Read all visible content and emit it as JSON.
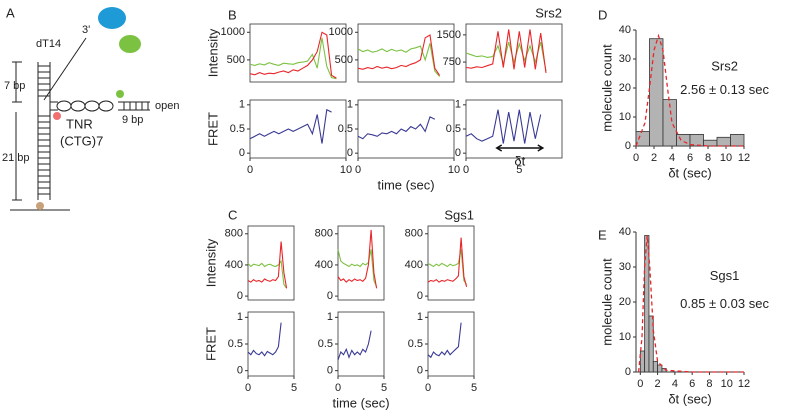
{
  "panel_labels": [
    "A",
    "B",
    "C",
    "D",
    "E"
  ],
  "diagram": {
    "three_prime": "3'",
    "tail": "dT14",
    "top_len": "7 bp",
    "bottom_len": "21 bp",
    "tnr": "TNR",
    "repeat": "(CTG)7",
    "open_len": "9 bp",
    "open": "open"
  },
  "chart_data": [
    {
      "type": "line",
      "ylabel": "Intensity",
      "ylim": [
        100,
        1150
      ],
      "yticks": [
        500,
        1000
      ],
      "xlim": [
        0,
        10
      ],
      "x": [
        0,
        0.5,
        1,
        1.5,
        2,
        2.5,
        3,
        3.5,
        4,
        4.5,
        5,
        5.5,
        6,
        6.5,
        7,
        7.5,
        8,
        8.5,
        9
      ],
      "series": [
        {
          "color": "#7cc242",
          "values": [
            420,
            400,
            430,
            410,
            450,
            420,
            400,
            440,
            430,
            420,
            450,
            460,
            480,
            600,
            350,
            900,
            380,
            180,
            160
          ]
        },
        {
          "color": "#e8262a",
          "values": [
            250,
            230,
            270,
            240,
            260,
            250,
            280,
            300,
            270,
            320,
            300,
            350,
            400,
            500,
            650,
            1000,
            950,
            220,
            170
          ]
        }
      ]
    },
    {
      "type": "line",
      "ylim": [
        100,
        1150
      ],
      "yticks": [
        500,
        1000
      ],
      "xlim": [
        0,
        10
      ],
      "x": [
        0,
        0.5,
        1,
        1.5,
        2,
        2.5,
        3,
        3.5,
        4,
        4.5,
        5,
        5.5,
        6,
        6.5,
        7,
        7.5,
        8,
        8.5
      ],
      "series": [
        {
          "color": "#7cc242",
          "values": [
            700,
            650,
            680,
            640,
            660,
            700,
            650,
            690,
            660,
            680,
            640,
            700,
            720,
            750,
            500,
            800,
            300,
            200
          ]
        },
        {
          "color": "#e8262a",
          "values": [
            350,
            330,
            360,
            340,
            380,
            350,
            370,
            340,
            360,
            400,
            380,
            420,
            450,
            500,
            900,
            950,
            350,
            220
          ]
        }
      ]
    },
    {
      "type": "line",
      "ylim": [
        200,
        1800
      ],
      "yticks": [
        750,
        1500
      ],
      "xlim": [
        0,
        9
      ],
      "annotation": "Srs2",
      "x": [
        0,
        0.5,
        1,
        1.5,
        2,
        2.5,
        3,
        3.5,
        4,
        4.5,
        5,
        5.5,
        6,
        6.5,
        7,
        7.5
      ],
      "series": [
        {
          "color": "#7cc242",
          "values": [
            1000,
            950,
            900,
            920,
            880,
            900,
            1200,
            700,
            1300,
            750,
            1250,
            800,
            1200,
            750,
            1300,
            500
          ]
        },
        {
          "color": "#e8262a",
          "values": [
            600,
            580,
            620,
            600,
            650,
            700,
            1600,
            600,
            1650,
            550,
            1600,
            600,
            1650,
            550,
            1550,
            450
          ]
        }
      ]
    },
    {
      "type": "line",
      "ylabel": "FRET",
      "ylim": [
        -0.1,
        1.1
      ],
      "yticks": [
        0,
        0.5,
        1
      ],
      "xlim": [
        0,
        10
      ],
      "xticks": [
        0,
        10
      ],
      "x": [
        0,
        0.5,
        1,
        1.5,
        2,
        2.5,
        3,
        3.5,
        4,
        4.5,
        5,
        5.5,
        6,
        6.5,
        7,
        7.5,
        8,
        8.5
      ],
      "series": [
        {
          "color": "#3a3a96",
          "values": [
            0.3,
            0.35,
            0.4,
            0.35,
            0.4,
            0.45,
            0.4,
            0.45,
            0.5,
            0.45,
            0.5,
            0.55,
            0.6,
            0.4,
            0.8,
            0.2,
            0.9,
            0.85
          ]
        }
      ]
    },
    {
      "type": "line",
      "ylim": [
        -0.1,
        1.1
      ],
      "yticks": [
        0,
        0.5,
        1
      ],
      "xlim": [
        0,
        10
      ],
      "xticks": [
        0,
        10
      ],
      "xlabel": "time (sec)",
      "x": [
        0,
        0.5,
        1,
        1.5,
        2,
        2.5,
        3,
        3.5,
        4,
        4.5,
        5,
        5.5,
        6,
        6.5,
        7,
        7.5,
        8
      ],
      "series": [
        {
          "color": "#3a3a96",
          "values": [
            0.35,
            0.3,
            0.4,
            0.38,
            0.35,
            0.42,
            0.4,
            0.45,
            0.4,
            0.5,
            0.45,
            0.55,
            0.5,
            0.6,
            0.45,
            0.75,
            0.7
          ]
        }
      ]
    },
    {
      "type": "line",
      "ylim": [
        -0.1,
        1.1
      ],
      "yticks": [
        0,
        0.5,
        1
      ],
      "xlim": [
        0,
        9
      ],
      "xticks": [
        0,
        5
      ],
      "annotation": "δt",
      "x": [
        0,
        0.5,
        1,
        1.5,
        2,
        2.5,
        3,
        3.5,
        4,
        4.5,
        5,
        5.5,
        6,
        6.5,
        7
      ],
      "series": [
        {
          "color": "#3a3a96",
          "values": [
            0.35,
            0.4,
            0.3,
            0.25,
            0.3,
            0.35,
            0.9,
            0.2,
            0.85,
            0.25,
            0.9,
            0.2,
            0.85,
            0.3,
            0.8
          ]
        }
      ]
    },
    {
      "type": "line",
      "ylabel": "Intensity",
      "ylim": [
        -50,
        900
      ],
      "yticks": [
        0,
        400,
        800
      ],
      "xlim": [
        0,
        5
      ],
      "x": [
        0,
        0.3,
        0.6,
        0.9,
        1.2,
        1.5,
        1.8,
        2.1,
        2.4,
        2.7,
        3,
        3.3,
        3.6,
        3.9,
        4.2
      ],
      "series": [
        {
          "color": "#7cc242",
          "values": [
            420,
            380,
            410,
            400,
            390,
            420,
            380,
            400,
            410,
            390,
            380,
            400,
            450,
            150,
            100
          ]
        },
        {
          "color": "#e8262a",
          "values": [
            200,
            180,
            210,
            190,
            200,
            180,
            220,
            200,
            190,
            210,
            200,
            250,
            700,
            300,
            100
          ]
        }
      ]
    },
    {
      "type": "line",
      "ylim": [
        -50,
        900
      ],
      "yticks": [
        0,
        400,
        800
      ],
      "xlim": [
        0,
        5
      ],
      "x": [
        0,
        0.3,
        0.6,
        0.9,
        1.2,
        1.5,
        1.8,
        2.1,
        2.4,
        2.7,
        3,
        3.3,
        3.6,
        3.9,
        4.2
      ],
      "series": [
        {
          "color": "#7cc242",
          "values": [
            600,
            450,
            420,
            400,
            380,
            410,
            390,
            400,
            380,
            420,
            400,
            430,
            600,
            200,
            120
          ]
        },
        {
          "color": "#e8262a",
          "values": [
            250,
            200,
            220,
            180,
            210,
            190,
            220,
            200,
            210,
            190,
            230,
            400,
            850,
            300,
            100
          ]
        }
      ]
    },
    {
      "type": "line",
      "ylim": [
        -50,
        900
      ],
      "yticks": [
        0,
        400,
        800
      ],
      "xlim": [
        0,
        5
      ],
      "annotation": "Sgs1",
      "x": [
        0,
        0.3,
        0.6,
        0.9,
        1.2,
        1.5,
        1.8,
        2.1,
        2.4,
        2.7,
        3,
        3.3,
        3.6,
        3.9,
        4.2
      ],
      "series": [
        {
          "color": "#7cc242",
          "values": [
            420,
            400,
            380,
            410,
            390,
            420,
            400,
            380,
            410,
            390,
            400,
            420,
            600,
            200,
            150
          ]
        },
        {
          "color": "#e8262a",
          "values": [
            180,
            200,
            190,
            210,
            180,
            200,
            190,
            210,
            200,
            190,
            220,
            260,
            750,
            250,
            120
          ]
        }
      ]
    },
    {
      "type": "line",
      "ylabel": "FRET",
      "ylim": [
        -0.1,
        1.1
      ],
      "yticks": [
        0,
        0.5,
        1
      ],
      "xlim": [
        0,
        5
      ],
      "xticks": [
        0,
        5
      ],
      "x": [
        0,
        0.3,
        0.6,
        0.9,
        1.2,
        1.5,
        1.8,
        2.1,
        2.4,
        2.7,
        3,
        3.3,
        3.6
      ],
      "series": [
        {
          "color": "#3a3a96",
          "values": [
            0.35,
            0.3,
            0.38,
            0.32,
            0.3,
            0.35,
            0.28,
            0.36,
            0.33,
            0.3,
            0.35,
            0.45,
            0.9
          ]
        }
      ]
    },
    {
      "type": "line",
      "ylim": [
        -0.1,
        1.1
      ],
      "yticks": [
        0,
        0.5,
        1
      ],
      "xlim": [
        0,
        5
      ],
      "xticks": [
        0,
        5
      ],
      "xlabel": "time (sec)",
      "x": [
        0,
        0.3,
        0.6,
        0.9,
        1.2,
        1.5,
        1.8,
        2.1,
        2.4,
        2.7,
        3,
        3.3,
        3.6
      ],
      "series": [
        {
          "color": "#3a3a96",
          "values": [
            0.2,
            0.35,
            0.3,
            0.4,
            0.25,
            0.38,
            0.3,
            0.35,
            0.3,
            0.4,
            0.35,
            0.5,
            0.75
          ]
        }
      ]
    },
    {
      "type": "line",
      "ylim": [
        -0.1,
        1.1
      ],
      "yticks": [
        0,
        0.5,
        1
      ],
      "xlim": [
        0,
        5
      ],
      "xticks": [
        0,
        5
      ],
      "x": [
        0,
        0.3,
        0.6,
        0.9,
        1.2,
        1.5,
        1.8,
        2.1,
        2.4,
        2.7,
        3,
        3.3,
        3.6
      ],
      "series": [
        {
          "color": "#3a3a96",
          "values": [
            0.3,
            0.25,
            0.35,
            0.3,
            0.28,
            0.35,
            0.3,
            0.38,
            0.3,
            0.35,
            0.4,
            0.45,
            0.9
          ]
        }
      ]
    },
    {
      "type": "histogram",
      "ylabel": "molecule count",
      "xlabel": "δt (sec)",
      "label": "Srs2",
      "stat": "2.56 ± 0.13 sec",
      "color": "#b3b3b3",
      "ylim": [
        0,
        40
      ],
      "yticks": [
        0,
        10,
        20,
        30,
        40
      ],
      "xlim": [
        0,
        12
      ],
      "xticks": [
        0,
        2,
        4,
        6,
        8,
        10,
        12
      ],
      "bins": [
        0,
        1.5,
        3,
        4.5,
        6,
        7.5,
        9,
        10.5,
        12
      ],
      "values": [
        5,
        37,
        16,
        4,
        4,
        2,
        3,
        4
      ],
      "fit_color": "#e8262a",
      "fit_x": [
        0,
        1,
        1.5,
        2,
        2.5,
        3,
        3.5,
        4,
        5,
        6,
        8,
        12
      ],
      "fit_values": [
        0,
        8,
        20,
        33,
        38,
        33,
        20,
        8,
        2,
        0.5,
        0,
        0
      ]
    },
    {
      "type": "histogram",
      "ylabel": "molecule count",
      "xlabel": "δt (sec)",
      "label": "Sgs1",
      "stat": "0.85 ± 0.03 sec",
      "color": "#b3b3b3",
      "ylim": [
        0,
        40
      ],
      "yticks": [
        0,
        10,
        20,
        30,
        40
      ],
      "xlim": [
        -0.5,
        12
      ],
      "xticks": [
        0,
        2,
        4,
        6,
        8,
        10,
        12
      ],
      "bins": [
        0,
        0.5,
        1,
        1.5,
        2,
        2.5,
        3
      ],
      "values": [
        6,
        39,
        16,
        3,
        2,
        1
      ],
      "fit_color": "#e8262a",
      "fit_x": [
        -0.2,
        0.2,
        0.5,
        0.8,
        1.1,
        1.5,
        2,
        3,
        6,
        12
      ],
      "fit_values": [
        0,
        10,
        30,
        39,
        30,
        12,
        3,
        0.5,
        0,
        0
      ]
    }
  ]
}
